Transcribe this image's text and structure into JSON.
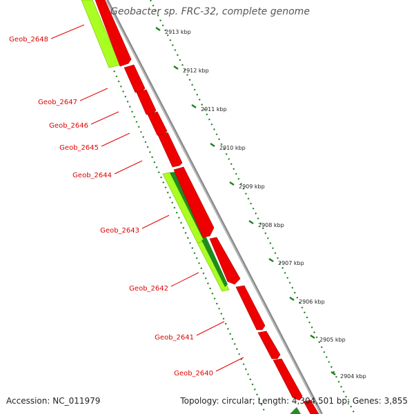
{
  "title": "Geobacter sp. FRC-32, complete genome",
  "footer": {
    "accession": "Accession: NC_011979",
    "topology": "Topology: circular; Length: 4,304,501 bp; Genes: 3,855"
  },
  "colors": {
    "forward_gene": "#ee0000",
    "reverse_gene": "#aaff22",
    "reverse_gene_alt": "#1f8a1f",
    "backbone": "#8a8a8a",
    "label": "#e00000",
    "tick": "#1e7e1e"
  },
  "genes": [
    {
      "label": "Geob_2648"
    },
    {
      "label": "Geob_2647"
    },
    {
      "label": "Geob_2646"
    },
    {
      "label": "Geob_2645"
    },
    {
      "label": "Geob_2644"
    },
    {
      "label": "Geob_2643"
    },
    {
      "label": "Geob_2642"
    },
    {
      "label": "Geob_2641"
    },
    {
      "label": "Geob_2640"
    }
  ],
  "scale_ticks": [
    {
      "label": "2913 kbp"
    },
    {
      "label": "2912 kbp"
    },
    {
      "label": "2911 kbp"
    },
    {
      "label": "2910 kbp"
    },
    {
      "label": "2909 kbp"
    },
    {
      "label": "2908 kbp"
    },
    {
      "label": "2907 kbp"
    },
    {
      "label": "2906 kbp"
    },
    {
      "label": "2905 kbp"
    },
    {
      "label": "2904 kbp"
    }
  ]
}
